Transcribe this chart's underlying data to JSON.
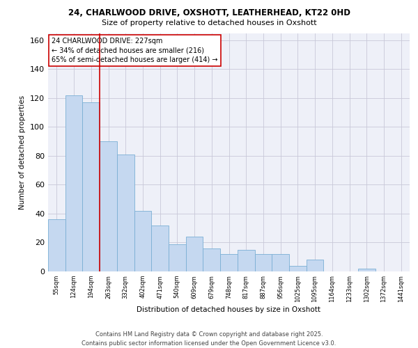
{
  "title1": "24, CHARLWOOD DRIVE, OXSHOTT, LEATHERHEAD, KT22 0HD",
  "title2": "Size of property relative to detached houses in Oxshott",
  "xlabel": "Distribution of detached houses by size in Oxshott",
  "ylabel": "Number of detached properties",
  "categories": [
    "55sqm",
    "124sqm",
    "194sqm",
    "263sqm",
    "332sqm",
    "402sqm",
    "471sqm",
    "540sqm",
    "609sqm",
    "679sqm",
    "748sqm",
    "817sqm",
    "887sqm",
    "956sqm",
    "1025sqm",
    "1095sqm",
    "1164sqm",
    "1233sqm",
    "1302sqm",
    "1372sqm",
    "1441sqm"
  ],
  "values": [
    36,
    122,
    117,
    90,
    81,
    42,
    32,
    19,
    24,
    16,
    12,
    15,
    12,
    12,
    4,
    8,
    0,
    0,
    2,
    0,
    0
  ],
  "bar_color": "#c5d8f0",
  "bar_edge_color": "#7aafd4",
  "annotation_text": "24 CHARLWOOD DRIVE: 227sqm\n← 34% of detached houses are smaller (216)\n65% of semi-detached houses are larger (414) →",
  "annotation_box_color": "#ffffff",
  "annotation_box_edge_color": "#cc0000",
  "vline_x": 2.5,
  "vline_color": "#cc0000",
  "ylim": [
    0,
    165
  ],
  "yticks": [
    0,
    20,
    40,
    60,
    80,
    100,
    120,
    140,
    160
  ],
  "footer": "Contains HM Land Registry data © Crown copyright and database right 2025.\nContains public sector information licensed under the Open Government Licence v3.0.",
  "grid_color": "#c8c8d8",
  "background_color": "#eef0f8"
}
